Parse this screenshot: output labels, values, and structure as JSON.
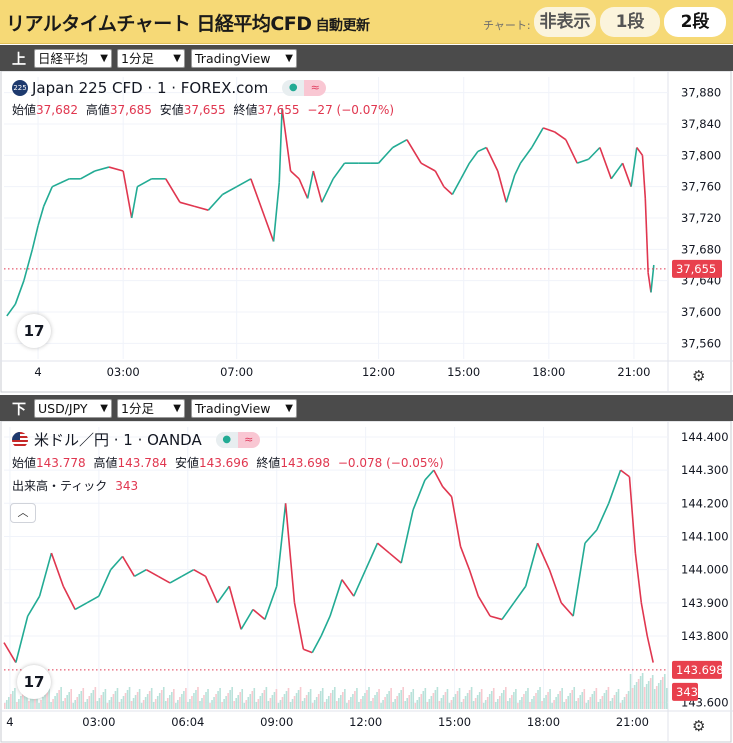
{
  "header": {
    "title": "リアルタイムチャート 日経平均CFD",
    "subtitle": "自動更新",
    "chart_label": "チャート:",
    "buttons": [
      "非表示",
      "1段",
      "2段"
    ],
    "active_button": "2段",
    "colors": {
      "background": "#f6d976"
    }
  },
  "upper": {
    "tag": "上",
    "selects": {
      "symbol": "日経平均",
      "interval": "1分足",
      "source": "TradingView"
    },
    "symbol_badge": "225",
    "symbol_title": "Japan 225 CFD · 1 · FOREX.com",
    "ohlc": {
      "o_label": "始値",
      "o": "37,682",
      "h_label": "高値",
      "h": "37,685",
      "l_label": "安値",
      "l": "37,655",
      "c_label": "終値",
      "c": "37,655",
      "change": "−27 (−0.07%)"
    },
    "settings_icon": "gear-icon",
    "logo_text": "17"
  },
  "lower": {
    "tag": "下",
    "selects": {
      "symbol": "USD/JPY",
      "interval": "1分足",
      "source": "TradingView"
    },
    "symbol_title": "米ドル／円 · 1 · OANDA",
    "ohlc": {
      "o_label": "始値",
      "o": "143.778",
      "h_label": "高値",
      "h": "143.784",
      "l_label": "安値",
      "l": "143.696",
      "c_label": "終値",
      "c": "143.698",
      "change": "−0.078 (−0.05%)"
    },
    "volume_label": "出来高・ティック",
    "volume_value": "343",
    "collapse_icon": "chevron-up-icon",
    "settings_icon": "gear-icon",
    "logo_text": "17"
  },
  "chart_data": [
    {
      "type": "line",
      "title": "Japan 225 CFD · 1 · FOREX.com",
      "y_ticks": [
        "37,880",
        "37,840",
        "37,800",
        "37,760",
        "37,720",
        "37,680",
        "37,640",
        "37,600",
        "37,560"
      ],
      "y_tick_values": [
        37880,
        37840,
        37800,
        37760,
        37720,
        37680,
        37640,
        37600,
        37560
      ],
      "ylim": [
        37540,
        37900
      ],
      "x_ticks": [
        "4",
        "03:00",
        "07:00",
        "12:00",
        "15:00",
        "18:00",
        "21:00"
      ],
      "x_tick_hours": [
        0,
        3,
        7,
        12,
        15,
        18,
        21
      ],
      "xlim": [
        -1.2,
        22.2
      ],
      "last_price_label": "37,655",
      "last_price": 37655,
      "series": [
        {
          "x": [
            -1.1,
            -0.8,
            -0.5,
            -0.2,
            0,
            0.2,
            0.5,
            0.8,
            1.1,
            1.5,
            2,
            2.5,
            3,
            3.3,
            3.5,
            4,
            4.5,
            5,
            5.5,
            6,
            6.5,
            7,
            7.5,
            8,
            8.3,
            8.5,
            8.6,
            8.9,
            9.2,
            9.5,
            9.7,
            10,
            10.4,
            10.8,
            11.3,
            11.7,
            12,
            12.5,
            13,
            13.5,
            14,
            14.3,
            14.6,
            14.9,
            15.2,
            15.5,
            15.8,
            16.2,
            16.5,
            16.8,
            17,
            17.4,
            17.8,
            18.2,
            18.6,
            19,
            19.4,
            19.8,
            20.2,
            20.6,
            20.9,
            21.1,
            21.3,
            21.4,
            21.5,
            21.6,
            21.7
          ],
          "values": [
            37595,
            37610,
            37640,
            37680,
            37710,
            37735,
            37760,
            37765,
            37770,
            37770,
            37780,
            37785,
            37780,
            37720,
            37760,
            37770,
            37770,
            37740,
            37735,
            37730,
            37750,
            37760,
            37770,
            37720,
            37690,
            37765,
            37860,
            37780,
            37770,
            37745,
            37780,
            37740,
            37770,
            37790,
            37790,
            37790,
            37790,
            37810,
            37820,
            37790,
            37780,
            37760,
            37750,
            37770,
            37790,
            37805,
            37810,
            37780,
            37740,
            37775,
            37790,
            37810,
            37835,
            37830,
            37820,
            37790,
            37795,
            37810,
            37770,
            37790,
            37760,
            37810,
            37800,
            37745,
            37650,
            37625,
            37660
          ]
        }
      ]
    },
    {
      "type": "line",
      "title": "米ドル／円 · 1 · OANDA",
      "y_ticks": [
        "144.400",
        "144.300",
        "144.200",
        "144.100",
        "144.000",
        "143.900",
        "143.800",
        "143.600"
      ],
      "y_tick_values": [
        144.4,
        144.3,
        144.2,
        144.1,
        144.0,
        143.9,
        143.8,
        143.6
      ],
      "ylim": [
        143.58,
        144.43
      ],
      "x_ticks": [
        "4",
        "03:00",
        "06:04",
        "09:00",
        "12:00",
        "15:00",
        "18:00",
        "21:00"
      ],
      "x_tick_hours": [
        0,
        3,
        6,
        9,
        12,
        15,
        18,
        21
      ],
      "xlim": [
        -0.2,
        22.2
      ],
      "last_price_label": "143.698",
      "last_price": 143.698,
      "volume_label": "343",
      "series": [
        {
          "x": [
            -0.2,
            0.2,
            0.6,
            1,
            1.4,
            1.8,
            2.2,
            2.6,
            3,
            3.4,
            3.8,
            4.2,
            4.6,
            5,
            5.4,
            5.8,
            6.2,
            6.6,
            7,
            7.4,
            7.8,
            8.2,
            8.6,
            9,
            9.3,
            9.6,
            9.9,
            10.2,
            10.5,
            10.8,
            11.2,
            11.6,
            12,
            12.4,
            12.8,
            13.2,
            13.6,
            14,
            14.3,
            14.6,
            14.9,
            15.2,
            15.5,
            15.8,
            16.2,
            16.6,
            17,
            17.4,
            17.8,
            18.2,
            18.6,
            19,
            19.4,
            19.8,
            20.2,
            20.6,
            20.9,
            21.1,
            21.3,
            21.5,
            21.7
          ],
          "values": [
            143.78,
            143.72,
            143.86,
            143.92,
            144.05,
            143.95,
            143.88,
            143.9,
            143.92,
            144.0,
            144.04,
            143.98,
            144.0,
            143.98,
            143.96,
            143.98,
            144.0,
            143.98,
            143.9,
            143.95,
            143.82,
            143.88,
            143.85,
            143.95,
            144.2,
            143.9,
            143.76,
            143.75,
            143.8,
            143.86,
            143.97,
            143.92,
            144.0,
            144.08,
            144.05,
            144.02,
            144.18,
            144.27,
            144.3,
            144.25,
            144.22,
            144.07,
            144.0,
            143.92,
            143.86,
            143.85,
            143.9,
            143.95,
            144.08,
            144.0,
            143.9,
            143.86,
            144.08,
            144.12,
            144.2,
            144.3,
            144.28,
            144.05,
            143.9,
            143.8,
            143.72
          ]
        }
      ]
    }
  ]
}
